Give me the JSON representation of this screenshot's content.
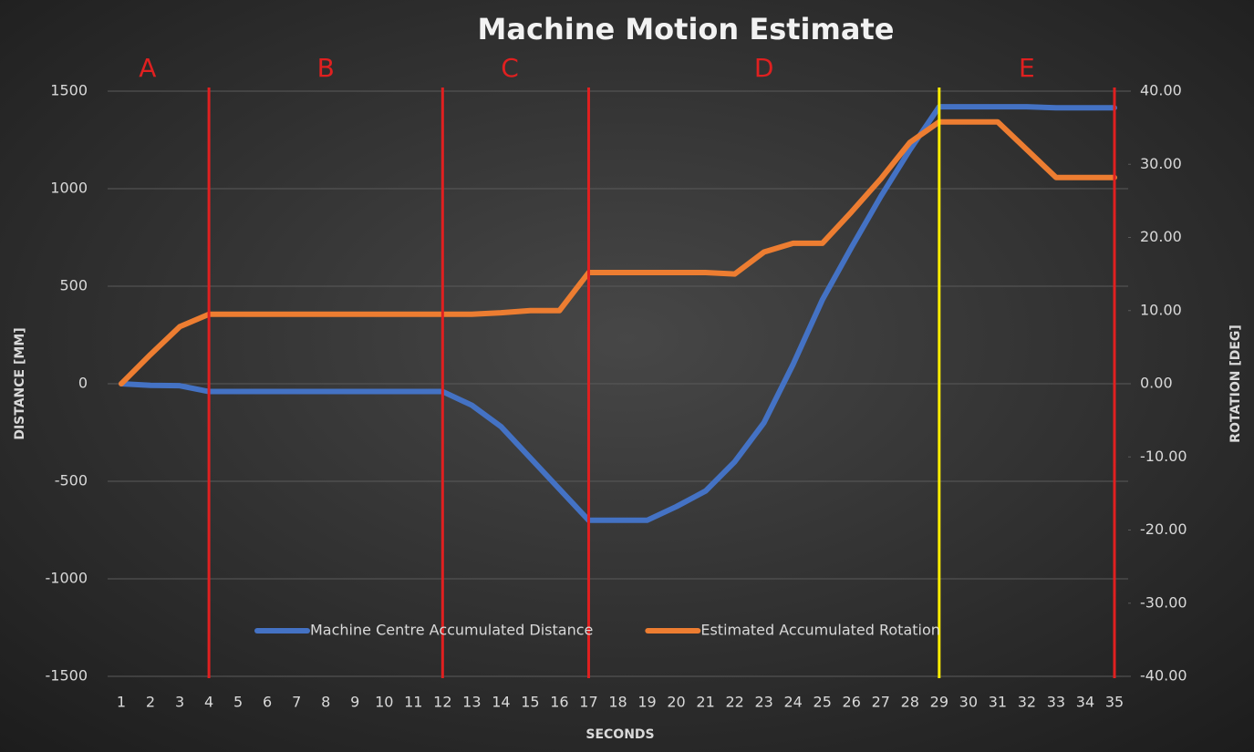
{
  "chart_data": {
    "type": "line",
    "title": "Machine Motion Estimate",
    "x_label": "SECONDS",
    "y_label": "DISTANCE [MM]",
    "y2_label": "ROTATION [DEG]",
    "categories": [
      1,
      2,
      3,
      4,
      5,
      6,
      7,
      8,
      9,
      10,
      11,
      12,
      13,
      14,
      15,
      16,
      17,
      18,
      19,
      20,
      21,
      22,
      23,
      24,
      25,
      26,
      27,
      28,
      29,
      30,
      31,
      32,
      33,
      34,
      35
    ],
    "series": [
      {
        "name": "Machine Centre Accumulated Distance",
        "color": "#4472c4",
        "values": [
          0,
          -8,
          -10,
          -40,
          -40,
          -40,
          -40,
          -40,
          -40,
          -40,
          -40,
          -40,
          -110,
          -220,
          -380,
          -540,
          -700,
          -700,
          -700,
          -630,
          -550,
          -400,
          -200,
          100,
          430,
          700,
          960,
          1200,
          1420,
          1420,
          1420,
          1420,
          1415,
          1415,
          1415
        ]
      },
      {
        "name": "Estimated Accumulated Rotation",
        "color": "#ed7d31",
        "axis": "y2",
        "values": [
          0,
          4,
          7.8,
          9.5,
          9.5,
          9.5,
          9.5,
          9.5,
          9.5,
          9.5,
          9.5,
          9.5,
          9.5,
          9.7,
          10,
          10,
          15.2,
          15.2,
          15.2,
          15.2,
          15.2,
          15,
          18,
          19.2,
          19.2,
          23.5,
          28,
          33,
          35.8,
          35.8,
          35.8,
          32,
          28.2,
          28.2,
          28.2
        ]
      }
    ],
    "ylim": [
      -1500,
      1500
    ],
    "yticks": [
      -1500,
      -1000,
      -500,
      0,
      500,
      1000,
      1500
    ],
    "y2lim": [
      -40,
      40
    ],
    "y2ticks": [
      {
        "value": -40,
        "label": "-40.00"
      },
      {
        "value": -30,
        "label": "-30.00"
      },
      {
        "value": -20,
        "label": "-20.00"
      },
      {
        "value": -10,
        "label": "-10.00"
      },
      {
        "value": 0,
        "label": "0.00"
      },
      {
        "value": 10,
        "label": "10.00"
      },
      {
        "value": 20,
        "label": "20.00"
      },
      {
        "value": 30,
        "label": "30.00"
      },
      {
        "value": 40,
        "label": "40.00"
      }
    ],
    "grid": true,
    "vlines": [
      {
        "x": 4,
        "color": "#e02020"
      },
      {
        "x": 12,
        "color": "#e02020"
      },
      {
        "x": 17,
        "color": "#e02020"
      },
      {
        "x": 29,
        "color": "#ffee00"
      },
      {
        "x": 35,
        "color": "#e02020"
      }
    ],
    "annotations": [
      {
        "text": "A",
        "x": 1.9
      },
      {
        "text": "B",
        "x": 8
      },
      {
        "text": "C",
        "x": 14.3
      },
      {
        "text": "D",
        "x": 23
      },
      {
        "text": "E",
        "x": 32
      }
    ]
  }
}
